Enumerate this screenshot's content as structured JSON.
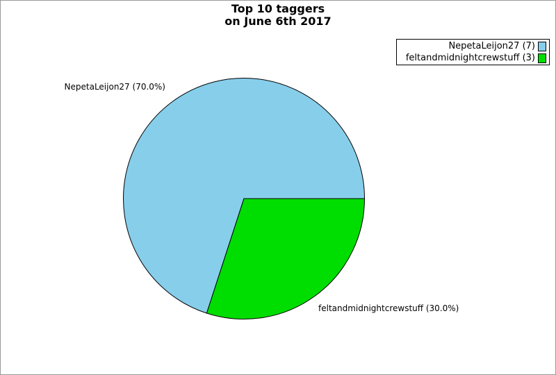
{
  "window": {
    "background": "#ffffff",
    "frame_border_color": "#999999"
  },
  "chart_data": {
    "type": "pie",
    "title": "Top 10 taggers\non June 6th 2017",
    "title_lines": [
      "Top 10 taggers",
      "on June 6th 2017"
    ],
    "total": 10,
    "start_angle_deg": 0,
    "direction": "counterclockwise",
    "slice_stroke_color": "#000000",
    "legend_position": "top-right",
    "slices": [
      {
        "name": "NepetaLeijon27",
        "value": 7,
        "percent": 70.0,
        "color": "#87CEEB",
        "legend_label": "NepetaLeijon27 (7)",
        "callout_label": "NepetaLeijon27 (70.0%)"
      },
      {
        "name": "feltandmidnightcrewstuff",
        "value": 3,
        "percent": 30.0,
        "color": "#00DD00",
        "legend_label": "feltandmidnightcrewstuff (3)",
        "callout_label": "feltandmidnightcrewstuff (30.0%)"
      }
    ]
  }
}
